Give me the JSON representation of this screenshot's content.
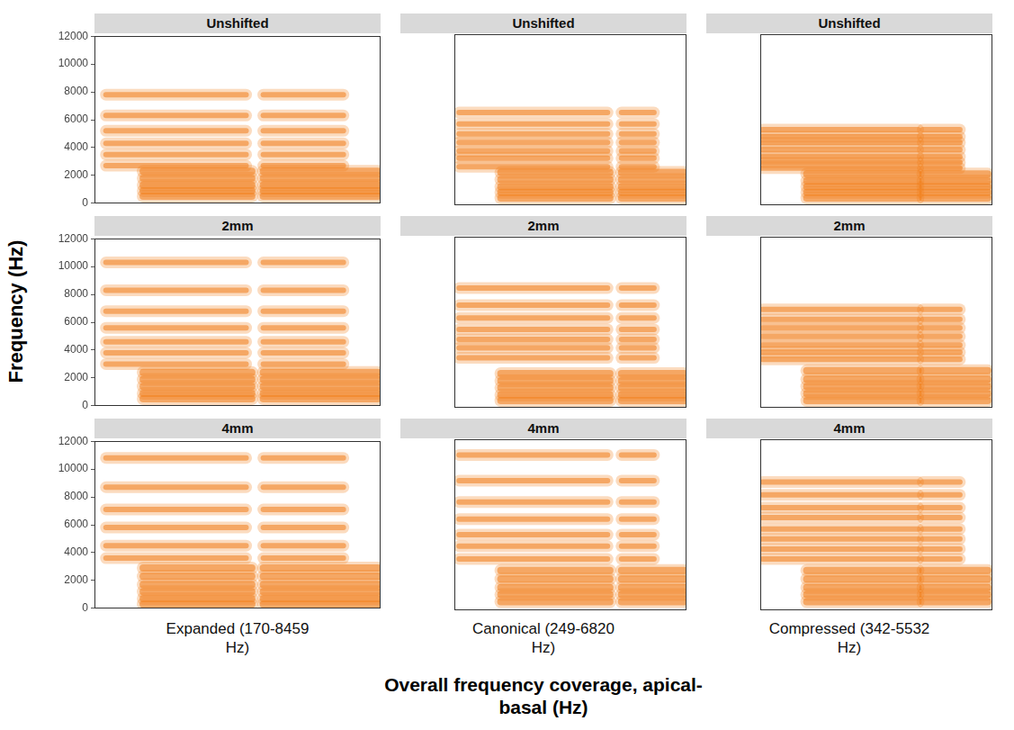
{
  "chart_data": {
    "type": "line",
    "ylabel": "Frequency (Hz)",
    "xlabel": "Overall frequency coverage, apical-basal (Hz)",
    "ylim": [
      0,
      12000
    ],
    "yticks": [
      0,
      2000,
      4000,
      6000,
      8000,
      10000,
      12000
    ],
    "xlim": [
      0,
      1
    ],
    "grid": false,
    "tick_labels": "y",
    "color": "#f07d1a",
    "columns": [
      "Expanded (170-8459 Hz)",
      "Canonical (249-6820 Hz)",
      "Compressed (342-5532 Hz)"
    ],
    "panels": [
      {
        "title": "Unshifted",
        "upper": {
          "freqs": [
            7800,
            6300,
            5200,
            4300,
            3500,
            2700
          ],
          "segments": [
            [
              0.04,
              0.53
            ],
            [
              0.59,
              0.87
            ]
          ]
        },
        "lower": {
          "freqs": [
            2300,
            1800,
            1300,
            900,
            500
          ],
          "segments": [
            [
              0.17,
              0.55
            ],
            [
              0.59,
              0.99
            ]
          ]
        }
      },
      {
        "title": "Unshifted",
        "upper": {
          "freqs": [
            6500,
            5700,
            5000,
            4400,
            3800,
            3300,
            2700
          ],
          "segments": [
            [
              0.02,
              0.66
            ],
            [
              0.72,
              0.86
            ]
          ]
        },
        "lower": {
          "freqs": [
            2300,
            1800,
            1300,
            900,
            500
          ],
          "segments": [
            [
              0.2,
              0.67
            ],
            [
              0.72,
              0.99
            ]
          ]
        }
      },
      {
        "title": "Unshifted",
        "upper": {
          "freqs": [
            5300,
            4800,
            4400,
            3900,
            3400,
            3000,
            2600
          ],
          "segments": [
            [
              0.01,
              0.68
            ],
            [
              0.7,
              0.86
            ]
          ]
        },
        "lower": {
          "freqs": [
            2200,
            1700,
            1300,
            900,
            500
          ],
          "segments": [
            [
              0.2,
              0.68
            ],
            [
              0.7,
              0.98
            ]
          ]
        }
      },
      {
        "title": "2mm",
        "upper": {
          "freqs": [
            10300,
            8300,
            6800,
            5600,
            4600,
            3800,
            3000
          ],
          "segments": [
            [
              0.04,
              0.53
            ],
            [
              0.59,
              0.87
            ]
          ]
        },
        "lower": {
          "freqs": [
            2400,
            1900,
            1400,
            900,
            500
          ],
          "segments": [
            [
              0.17,
              0.55
            ],
            [
              0.59,
              0.99
            ]
          ]
        }
      },
      {
        "title": "2mm",
        "upper": {
          "freqs": [
            8400,
            7200,
            6300,
            5500,
            4800,
            4200,
            3500
          ],
          "segments": [
            [
              0.02,
              0.66
            ],
            [
              0.72,
              0.86
            ]
          ]
        },
        "lower": {
          "freqs": [
            2400,
            1900,
            1400,
            900,
            500
          ],
          "segments": [
            [
              0.2,
              0.67
            ],
            [
              0.72,
              0.99
            ]
          ]
        }
      },
      {
        "title": "2mm",
        "upper": {
          "freqs": [
            6900,
            6200,
            5600,
            5000,
            4400,
            3900,
            3400
          ],
          "segments": [
            [
              0.01,
              0.68
            ],
            [
              0.7,
              0.86
            ]
          ]
        },
        "lower": {
          "freqs": [
            2600,
            2000,
            1500,
            1000,
            500
          ],
          "segments": [
            [
              0.2,
              0.68
            ],
            [
              0.7,
              0.98
            ]
          ]
        }
      },
      {
        "title": "4mm",
        "upper": {
          "freqs": [
            10800,
            8700,
            7100,
            5800,
            4500,
            3600
          ],
          "segments": [
            [
              0.04,
              0.53
            ],
            [
              0.59,
              0.87
            ]
          ]
        },
        "lower": {
          "freqs": [
            2900,
            2300,
            1700,
            1200,
            700,
            300
          ],
          "segments": [
            [
              0.17,
              0.55
            ],
            [
              0.59,
              0.99
            ]
          ]
        }
      },
      {
        "title": "4mm",
        "upper": {
          "freqs": [
            10900,
            9100,
            7600,
            6400,
            5300,
            4500,
            3600
          ],
          "segments": [
            [
              0.02,
              0.66
            ],
            [
              0.72,
              0.86
            ]
          ]
        },
        "lower": {
          "freqs": [
            2800,
            2200,
            1600,
            1100,
            600
          ],
          "segments": [
            [
              0.2,
              0.67
            ],
            [
              0.72,
              0.99
            ]
          ]
        }
      },
      {
        "title": "4mm",
        "upper": {
          "freqs": [
            9000,
            8100,
            7200,
            6500,
            5700,
            5000,
            4300,
            3600
          ],
          "segments": [
            [
              0.01,
              0.68
            ],
            [
              0.7,
              0.86
            ]
          ]
        },
        "lower": {
          "freqs": [
            2800,
            2200,
            1600,
            1100,
            600
          ],
          "segments": [
            [
              0.2,
              0.68
            ],
            [
              0.7,
              0.98
            ]
          ]
        }
      }
    ]
  }
}
